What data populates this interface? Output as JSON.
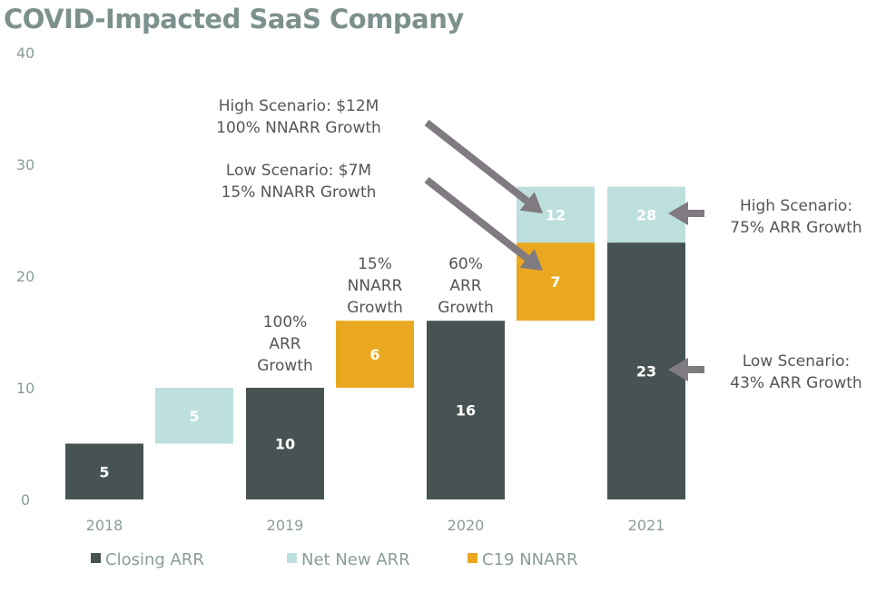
{
  "chart_data": {
    "type": "bar",
    "title": "COVID-Impacted SaaS Company",
    "ylim": [
      0,
      40
    ],
    "yticks": [
      0,
      10,
      20,
      30,
      40
    ],
    "grid": false,
    "legend_position": "bottom",
    "colors": {
      "Closing ARR": "#465352",
      "Net New ARR": "#bddfde",
      "C19 NNARR": "#e9a81f",
      "arrow": "#7f7b80",
      "title": "#7c918d"
    },
    "legend": [
      "Closing ARR",
      "Net New ARR",
      "C19 NNARR"
    ],
    "category_labels": [
      {
        "column": 0,
        "text": "2018"
      },
      {
        "column": 2,
        "text": "2019"
      },
      {
        "column": 4,
        "text": "2020"
      },
      {
        "column": 6,
        "text": "2021"
      }
    ],
    "columns": [
      {
        "segments": [
          {
            "series": "Closing ARR",
            "from": 0,
            "to": 5,
            "label": "5"
          }
        ]
      },
      {
        "segments": [
          {
            "series": "Net New ARR",
            "from": 5,
            "to": 10,
            "label": "5"
          }
        ]
      },
      {
        "segments": [
          {
            "series": "Closing ARR",
            "from": 0,
            "to": 10,
            "label": "10"
          }
        ]
      },
      {
        "segments": [
          {
            "series": "C19 NNARR",
            "from": 10,
            "to": 16,
            "label": "6"
          }
        ]
      },
      {
        "segments": [
          {
            "series": "Closing ARR",
            "from": 0,
            "to": 16,
            "label": "16"
          }
        ]
      },
      {
        "segments": [
          {
            "series": "C19 NNARR",
            "from": 16,
            "to": 23,
            "label": "7"
          },
          {
            "series": "Net New ARR",
            "from": 23,
            "to": 28,
            "label": "12"
          }
        ]
      },
      {
        "segments": [
          {
            "series": "Closing ARR",
            "from": 0,
            "to": 23,
            "label": "23"
          },
          {
            "series": "Net New ARR",
            "from": 23,
            "to": 28,
            "label": "28"
          }
        ]
      }
    ],
    "annotations": [
      {
        "lines": [
          "100%",
          "ARR",
          "Growth"
        ]
      },
      {
        "lines": [
          "15%",
          "NNARR",
          "Growth"
        ]
      },
      {
        "lines": [
          "60%",
          "ARR",
          "Growth"
        ]
      },
      {
        "lines": [
          "High Scenario: $12M",
          "100% NNARR Growth"
        ]
      },
      {
        "lines": [
          "Low Scenario: $7M",
          "15% NNARR Growth"
        ]
      },
      {
        "lines": [
          "High Scenario:",
          "75% ARR Growth"
        ]
      },
      {
        "lines": [
          "Low  Scenario:",
          "43% ARR Growth"
        ]
      }
    ]
  }
}
